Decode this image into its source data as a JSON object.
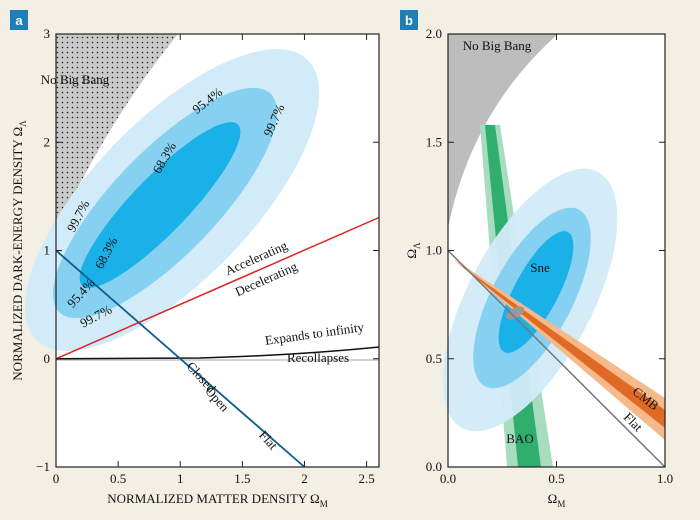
{
  "chart_data": [
    {
      "type": "contour",
      "panel_label": "a",
      "xlabel": {
        "text": "NORMALIZED MATTER DENSITY Ω",
        "sub": "M"
      },
      "ylabel": {
        "text": "NORMALIZED DARK-ENERGY DENSITY Ω",
        "sub": "Λ"
      },
      "xlim": [
        0,
        2.6
      ],
      "xticks": [
        0,
        0.5,
        1,
        1.5,
        2,
        2.5
      ],
      "ylim": [
        -1,
        3
      ],
      "yticks": [
        {
          "value": -1,
          "label": "−1"
        },
        0,
        1,
        2,
        3
      ],
      "annotations": [
        "No Big Bang",
        "99.7%",
        "95.4%",
        "68.3%",
        "99.7%",
        "68.3%",
        "95.4%",
        "99.7%",
        "Accelerating",
        "Decelerating",
        "Expands to infinity",
        "Recollapses",
        "Closed",
        "Open",
        "Flat"
      ]
    },
    {
      "type": "contour",
      "panel_label": "b",
      "xlabel": {
        "text": "Ω",
        "sub": "M"
      },
      "ylabel": {
        "text": "Ω",
        "sub": "Λ"
      },
      "xlim": [
        0,
        1
      ],
      "xticks": [
        {
          "value": 0,
          "label": "0.0"
        },
        {
          "value": 0.5,
          "label": "0.5"
        },
        {
          "value": 1,
          "label": "1.0"
        }
      ],
      "ylim": [
        0,
        2
      ],
      "yticks": [
        {
          "value": 0,
          "label": "0.0"
        },
        {
          "value": 0.5,
          "label": "0.5"
        },
        {
          "value": 1,
          "label": "1.0"
        },
        {
          "value": 1.5,
          "label": "1.5"
        },
        {
          "value": 2,
          "label": "2.0"
        }
      ],
      "annotations": [
        "No Big Bang",
        "Sne",
        "CMB",
        "BAO",
        "Flat"
      ]
    }
  ]
}
